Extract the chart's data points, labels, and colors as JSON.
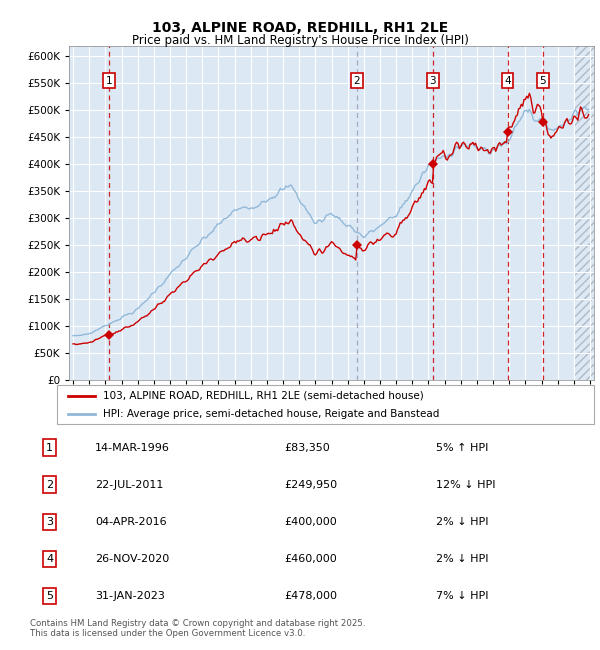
{
  "title": "103, ALPINE ROAD, REDHILL, RH1 2LE",
  "subtitle": "Price paid vs. HM Land Registry's House Price Index (HPI)",
  "legend_line1": "103, ALPINE ROAD, REDHILL, RH1 2LE (semi-detached house)",
  "legend_line2": "HPI: Average price, semi-detached house, Reigate and Banstead",
  "footer": "Contains HM Land Registry data © Crown copyright and database right 2025.\nThis data is licensed under the Open Government Licence v3.0.",
  "transactions": [
    {
      "id": 1,
      "date": "14-MAR-1996",
      "price": 83350,
      "hpi_rel": "5% ↑ HPI",
      "x_year": 1996.21
    },
    {
      "id": 2,
      "date": "22-JUL-2011",
      "price": 249950,
      "hpi_rel": "12% ↓ HPI",
      "x_year": 2011.56
    },
    {
      "id": 3,
      "date": "04-APR-2016",
      "price": 400000,
      "hpi_rel": "2% ↓ HPI",
      "x_year": 2016.26
    },
    {
      "id": 4,
      "date": "26-NOV-2020",
      "price": 460000,
      "hpi_rel": "2% ↓ HPI",
      "x_year": 2020.9
    },
    {
      "id": 5,
      "date": "31-JAN-2023",
      "price": 478000,
      "hpi_rel": "7% ↓ HPI",
      "x_year": 2023.08
    }
  ],
  "hpi_color": "#92b8d8",
  "price_color": "#cc0000",
  "background_plot": "#dce9f5",
  "grid_color": "#ffffff",
  "vline_colors": [
    "#cc0000",
    "#aaaacc",
    "#cc0000",
    "#cc0000",
    "#cc0000"
  ],
  "ylim": [
    0,
    620000
  ],
  "xlim_start": 1993.75,
  "xlim_end": 2026.25,
  "hatch_right_start": 2025.0,
  "yticks": [
    0,
    50000,
    100000,
    150000,
    200000,
    250000,
    300000,
    350000,
    400000,
    450000,
    500000,
    550000,
    600000
  ],
  "ytick_labels": [
    "£0",
    "£50K",
    "£100K",
    "£150K",
    "£200K",
    "£250K",
    "£300K",
    "£350K",
    "£400K",
    "£450K",
    "£500K",
    "£550K",
    "£600K"
  ]
}
